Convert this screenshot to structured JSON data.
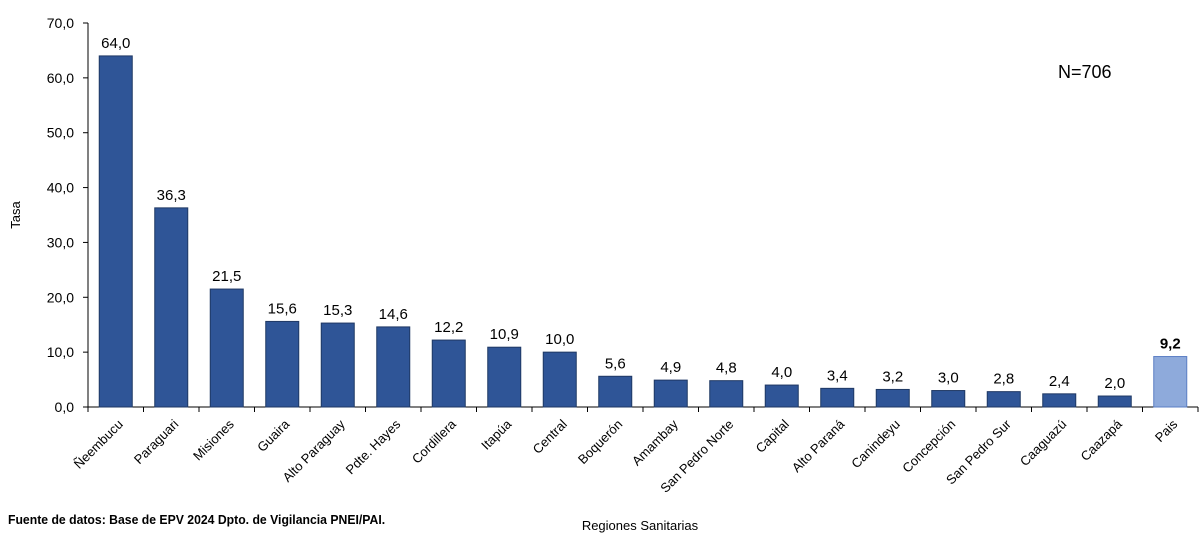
{
  "chart_data": {
    "type": "bar",
    "categories": [
      "Ñeembucu",
      "Paraguari",
      "Misiones",
      "Guaira",
      "Alto Paraguay",
      "Pdte. Hayes",
      "Cordillera",
      "Itapúa",
      "Central",
      "Boquerón",
      "Amambay",
      "San Pedro Norte",
      "Capital",
      "Alto Paraná",
      "Canindeyu",
      "Concepción",
      "San Pedro Sur",
      "Caaguazú",
      "Caazapá",
      "Pais"
    ],
    "values": [
      64.0,
      36.3,
      21.5,
      15.6,
      15.3,
      14.6,
      12.2,
      10.9,
      10.0,
      5.6,
      4.9,
      4.8,
      4.0,
      3.4,
      3.2,
      3.0,
      2.8,
      2.4,
      2.0,
      9.2
    ],
    "value_labels": [
      "64,0",
      "36,3",
      "21,5",
      "15,6",
      "15,3",
      "14,6",
      "12,2",
      "10,9",
      "10,0",
      "5,6",
      "4,9",
      "4,8",
      "4,0",
      "3,4",
      "3,2",
      "3,0",
      "2,8",
      "2,4",
      "2,0",
      "9,2"
    ],
    "highlight_category": "Pais",
    "ylabel": "Tasa",
    "xlabel": "Regiones Sanitarias",
    "ylim": [
      0,
      70
    ],
    "yticks": [
      0,
      10,
      20,
      30,
      40,
      50,
      60,
      70
    ],
    "ytick_labels": [
      "0,0",
      "10,0",
      "20,0",
      "30,0",
      "40,0",
      "50,0",
      "60,0",
      "70,0"
    ],
    "annotation": "N=706",
    "grid": false,
    "legend": "none",
    "colors": {
      "bar": "#2f5597",
      "highlight": "#8eaadb",
      "bar_edge": "#1f3864",
      "axis": "#000000"
    }
  },
  "footnote": "Fuente de datos: Base de EPV 2024 Dpto. de Vigilancia PNEI/PAI."
}
